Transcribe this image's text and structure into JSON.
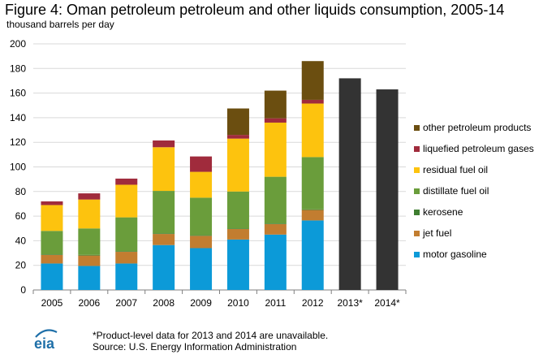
{
  "title": "Figure 4: Oman petroleum petroleum and other liquids consumption, 2005-14",
  "subtitle": "thousand barrels per day",
  "footnote": {
    "line1": "*Product-level  data for 2013 and 2014 are unavailable.",
    "line2": "Source:  U.S. Energy Information  Administration"
  },
  "logo": {
    "text": "eia",
    "color": "#1e6fa8"
  },
  "chart_data": {
    "type": "bar",
    "stacked": true,
    "categories": [
      "2005",
      "2006",
      "2007",
      "2008",
      "2009",
      "2010",
      "2011",
      "2012",
      "2013*",
      "2014*"
    ],
    "ylim": [
      0,
      200
    ],
    "yticks": [
      0,
      20,
      40,
      60,
      80,
      100,
      120,
      140,
      160,
      180,
      200
    ],
    "grid": true,
    "legend_position": "right",
    "series": [
      {
        "name": "motor gasoline",
        "color": "#0c9ad8",
        "values": [
          21.5,
          19.5,
          21.5,
          36.5,
          34,
          41,
          45,
          56.5,
          null,
          null
        ]
      },
      {
        "name": "jet fuel",
        "color": "#c27d30",
        "values": [
          7,
          8.5,
          9.5,
          9,
          10,
          8.5,
          8.5,
          8.5,
          null,
          null
        ]
      },
      {
        "name": "kerosene",
        "color": "#3f7e31",
        "values": [
          0.5,
          0.5,
          0.5,
          0.5,
          0.5,
          0.5,
          0.5,
          0.5,
          null,
          null
        ]
      },
      {
        "name": "distillate fuel oil",
        "color": "#6a9d3b",
        "values": [
          19,
          21.5,
          27.5,
          34.5,
          30.5,
          30,
          38,
          42.5,
          null,
          null
        ]
      },
      {
        "name": "residual fuel oil",
        "color": "#fdc30e",
        "values": [
          21,
          23.5,
          26.5,
          35.5,
          21,
          43,
          44,
          43.5,
          null,
          null
        ]
      },
      {
        "name": "liquefied petroleum gases",
        "color": "#a02b3c",
        "values": [
          3,
          5,
          5,
          5.5,
          12.5,
          3,
          3.5,
          3,
          null,
          null
        ]
      },
      {
        "name": "other petroleum products",
        "color": "#6b4e10",
        "values": [
          0,
          0,
          0,
          0,
          0,
          21.5,
          22.5,
          31.5,
          null,
          null
        ]
      }
    ],
    "totals_only": {
      "color": "#333333",
      "values": {
        "2013*": 172,
        "2014*": 163
      }
    }
  }
}
